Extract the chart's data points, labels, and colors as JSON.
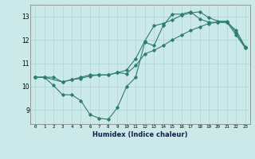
{
  "line1_x": [
    0,
    1,
    2,
    3,
    4,
    5,
    6,
    7,
    8,
    9,
    10,
    11,
    12,
    13,
    14,
    15,
    16,
    17,
    18,
    19,
    20,
    21,
    22,
    23
  ],
  "line1_y": [
    10.4,
    10.4,
    10.05,
    9.65,
    9.65,
    9.4,
    8.8,
    8.65,
    8.6,
    9.1,
    10.0,
    10.4,
    11.9,
    11.75,
    12.6,
    13.1,
    13.1,
    13.2,
    12.9,
    12.75,
    12.75,
    12.75,
    12.2,
    11.65
  ],
  "line2_x": [
    0,
    1,
    2,
    3,
    4,
    5,
    6,
    7,
    8,
    9,
    10,
    11,
    12,
    13,
    14,
    15,
    16,
    17,
    18,
    19,
    20,
    21,
    22,
    23
  ],
  "line2_y": [
    10.4,
    10.4,
    10.4,
    10.2,
    10.3,
    10.4,
    10.5,
    10.5,
    10.5,
    10.6,
    10.55,
    10.9,
    11.4,
    11.55,
    11.75,
    12.0,
    12.2,
    12.4,
    12.55,
    12.7,
    12.75,
    12.75,
    12.4,
    11.7
  ],
  "line3_x": [
    0,
    1,
    3,
    4,
    5,
    6,
    7,
    8,
    9,
    10,
    11,
    12,
    13,
    14,
    15,
    16,
    17,
    18,
    19,
    20,
    21,
    22,
    23
  ],
  "line3_y": [
    10.4,
    10.4,
    10.2,
    10.3,
    10.35,
    10.45,
    10.5,
    10.5,
    10.6,
    10.7,
    11.2,
    11.95,
    12.6,
    12.7,
    12.85,
    13.05,
    13.15,
    13.2,
    12.95,
    12.8,
    12.8,
    12.3,
    11.65
  ],
  "color": "#2e7d6e",
  "bg_color": "#cce9e9",
  "grid_color": "#aad4d4",
  "xlabel": "Humidex (Indice chaleur)",
  "xlim": [
    -0.5,
    23.5
  ],
  "ylim": [
    8.4,
    13.5
  ],
  "yticks": [
    9,
    10,
    11,
    12,
    13
  ],
  "xticks": [
    0,
    1,
    2,
    3,
    4,
    5,
    6,
    7,
    8,
    9,
    10,
    11,
    12,
    13,
    14,
    15,
    16,
    17,
    18,
    19,
    20,
    21,
    22,
    23
  ]
}
